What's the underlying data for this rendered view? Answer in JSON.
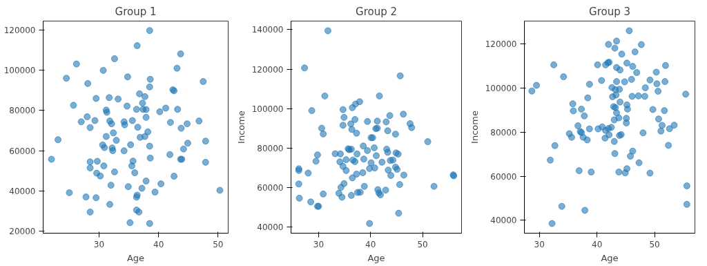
{
  "chart_data": [
    {
      "type": "scatter",
      "title": "Group 1",
      "xlabel": "Age",
      "color": "#1f77b4",
      "marker": "circle",
      "grid": false,
      "xlim": [
        20.6,
        51.7
      ],
      "xticks": [
        30,
        40,
        50
      ],
      "ylim": [
        19100,
        124400
      ],
      "yticks": [
        20000,
        40000,
        60000,
        80000,
        100000,
        120000
      ],
      "x": [
        38.5,
        36.4,
        43.7,
        32.6,
        26.2,
        30.7,
        43.1,
        24.5,
        34.8,
        38.6,
        47.5,
        28.1,
        38.5,
        42.4,
        42.6,
        29.5,
        31.7,
        33.2,
        36.8,
        37.7,
        25.7,
        34.7,
        37.3,
        31.2,
        31.3,
        36.3,
        37.4,
        37.9,
        40.2,
        41.2,
        43.2,
        27.0,
        28.0,
        29.3,
        28.5,
        31.8,
        32.1,
        34.2,
        34.3,
        35.6,
        36.5,
        37.9,
        42.0,
        43.8,
        44.8,
        46.8,
        23.1,
        31.2,
        32.4,
        32.9,
        36.9,
        37.7,
        38.2,
        30.6,
        30.9,
        32.2,
        32.3,
        34.2,
        35.3,
        38.5,
        44.9,
        44.2,
        47.9,
        22.0,
        28.5,
        28.5,
        29.7,
        30.8,
        35.7,
        35.5,
        38.6,
        41.9,
        43.7,
        43.9,
        47.9,
        29.6,
        30.2,
        32.6,
        36.0,
        42.6,
        25.0,
        27.8,
        29.5,
        32.0,
        34.9,
        37.2,
        37.9,
        40.4,
        39.4,
        36.4,
        36.3,
        50.3,
        28.5,
        31.8,
        36.3,
        36.7,
        35.2,
        38.5
      ],
      "values": [
        119700,
        112200,
        108100,
        105700,
        103100,
        99900,
        101000,
        96000,
        96700,
        95500,
        94400,
        93400,
        91700,
        90300,
        89800,
        86000,
        86400,
        85700,
        88300,
        86900,
        82600,
        82200,
        83700,
        80200,
        79100,
        80600,
        80600,
        80500,
        79400,
        81200,
        80600,
        74400,
        76900,
        75000,
        71500,
        74800,
        73400,
        74400,
        72900,
        75000,
        71700,
        76600,
        74100,
        71200,
        73400,
        74800,
        65500,
        67100,
        68900,
        65200,
        66700,
        67100,
        69400,
        62900,
        61600,
        61400,
        60100,
        60000,
        63000,
        62300,
        63800,
        60900,
        64800,
        55800,
        54500,
        51500,
        54800,
        52500,
        54900,
        52500,
        56400,
        58100,
        55800,
        55800,
        54300,
        48900,
        47500,
        49500,
        49100,
        47400,
        39200,
        37100,
        36700,
        42900,
        42200,
        41400,
        45000,
        43600,
        39500,
        38000,
        37000,
        40400,
        29600,
        33400,
        30600,
        29600,
        24300,
        23900
      ]
    },
    {
      "type": "scatter",
      "title": "Group 2",
      "xlabel": "Age",
      "ylabel": "Income",
      "color": "#1f77b4",
      "marker": "circle",
      "grid": false,
      "xlim": [
        24.7,
        57.5
      ],
      "xticks": [
        30,
        40,
        50
      ],
      "ylim": [
        37000,
        144300
      ],
      "yticks": [
        40000,
        60000,
        80000,
        100000,
        120000,
        140000
      ],
      "x": [
        31.8,
        27.3,
        45.7,
        31.2,
        41.7,
        28.7,
        34.7,
        36.5,
        37.1,
        37.9,
        34.9,
        37.0,
        34.7,
        36.2,
        36.4,
        37.3,
        39.4,
        41.3,
        41.0,
        41.3,
        43.0,
        43.7,
        43.3,
        44.8,
        46.3,
        47.6,
        47.9,
        30.6,
        30.9,
        40.1,
        40.4,
        51.0,
        38.6,
        39.4,
        40.7,
        35.7,
        35.9,
        36.3,
        37.4,
        33.2,
        34.2,
        29.8,
        29.5,
        34.1,
        35.3,
        36.6,
        37.0,
        38.7,
        40.1,
        41.1,
        42.2,
        43.1,
        43.3,
        43.8,
        44.3,
        44.9,
        45.3,
        44.8,
        45.1,
        34.7,
        35.3,
        26.2,
        26.2,
        28.0,
        26.2,
        26.3,
        28.5,
        29.8,
        30.0,
        30.9,
        33.9,
        34.5,
        34.3,
        34.9,
        36.3,
        36.5,
        37.3,
        37.5,
        38.0,
        38.5,
        38.8,
        39.8,
        40.8,
        43.4,
        43.9,
        46.4,
        41.4,
        41.6,
        41.9,
        42.9,
        45.6,
        52.2,
        55.9,
        56.0,
        45.4,
        39.8
      ],
      "values": [
        139400,
        120600,
        116600,
        106400,
        106400,
        99000,
        99500,
        100500,
        102300,
        103500,
        95600,
        94500,
        91600,
        92300,
        89500,
        87600,
        93500,
        93700,
        89900,
        90100,
        93300,
        96500,
        88800,
        87100,
        97200,
        92400,
        90400,
        90100,
        87200,
        85300,
        85300,
        83300,
        81100,
        78800,
        80200,
        79700,
        79200,
        79500,
        77100,
        77200,
        77100,
        76600,
        73400,
        73100,
        74200,
        74000,
        73200,
        74500,
        72600,
        76200,
        72900,
        79500,
        77900,
        73800,
        74000,
        77600,
        77000,
        70400,
        69300,
        70800,
        68700,
        69600,
        68700,
        67400,
        61900,
        54700,
        52800,
        50600,
        50600,
        56800,
        57200,
        55200,
        60200,
        62100,
        56100,
        65000,
        66900,
        57600,
        57700,
        67600,
        60700,
        69700,
        70000,
        68900,
        66200,
        66400,
        59000,
        57400,
        56400,
        58800,
        61600,
        60700,
        66500,
        66000,
        47100,
        41900
      ]
    },
    {
      "type": "scatter",
      "title": "Group 3",
      "xlabel": "Age",
      "ylabel": "Income",
      "color": "#1f77b4",
      "marker": "circle",
      "grid": false,
      "xlim": [
        27.4,
        57.0
      ],
      "xticks": [
        30,
        40,
        50
      ],
      "ylim": [
        34100,
        130500
      ],
      "yticks": [
        40000,
        60000,
        80000,
        100000,
        120000
      ],
      "x": [
        45.6,
        43.4,
        42.0,
        43.1,
        47.7,
        46.6,
        44.3,
        32.5,
        40.1,
        41.5,
        41.9,
        42.1,
        45.2,
        46.2,
        43.4,
        44.0,
        46.9,
        51.9,
        50.3,
        34.2,
        40.8,
        43.4,
        44.8,
        46.0,
        49.2,
        50.4,
        51.8,
        38.7,
        42.6,
        43.2,
        43.9,
        48.4,
        50.6,
        29.5,
        28.7,
        55.4,
        38.4,
        42.7,
        43.3,
        46.1,
        47.2,
        48.3,
        44.0,
        35.8,
        35.9,
        37.3,
        37.8,
        42.9,
        43.2,
        45.2,
        45.3,
        43.4,
        43.0,
        43.8,
        45.1,
        45.1,
        49.7,
        51.7,
        50.7,
        51.3,
        53.4,
        52.6,
        51.1,
        36.7,
        37.1,
        37.3,
        35.2,
        35.6,
        37.6,
        38.3,
        38.7,
        40.2,
        40.9,
        41.5,
        42.0,
        42.5,
        42.1,
        41.4,
        43.0,
        43.9,
        44.2,
        48.0,
        52.4,
        32.7,
        43.1,
        46.2,
        45.8,
        47.3,
        31.9,
        36.9,
        39.0,
        43.8,
        44.9,
        45.2,
        49.2,
        55.6,
        55.6,
        33.9,
        37.9,
        32.2
      ],
      "values": [
        126100,
        121400,
        119900,
        118200,
        119800,
        116500,
        115500,
        110600,
        110600,
        110600,
        111600,
        111800,
        111400,
        109900,
        109400,
        108300,
        107100,
        110300,
        107300,
        105200,
        103500,
        103000,
        102900,
        104000,
        103700,
        102000,
        103000,
        101800,
        100300,
        99300,
        99500,
        100200,
        98600,
        101300,
        98700,
        97300,
        95600,
        96100,
        96900,
        96300,
        96500,
        96300,
        93700,
        92900,
        89700,
        90500,
        87400,
        91600,
        91200,
        92400,
        90500,
        88800,
        85600,
        86500,
        86300,
        84200,
        90300,
        89800,
        86000,
        83100,
        83200,
        81600,
        80500,
        82900,
        80300,
        79800,
        79300,
        77700,
        77700,
        76500,
        81500,
        81500,
        82400,
        80800,
        81700,
        82200,
        78800,
        77300,
        75800,
        78500,
        78900,
        79700,
        74000,
        73900,
        70300,
        71400,
        69100,
        66100,
        67300,
        62500,
        61900,
        61900,
        61500,
        63400,
        61400,
        55600,
        47200,
        46300,
        44500,
        38500
      ]
    }
  ]
}
